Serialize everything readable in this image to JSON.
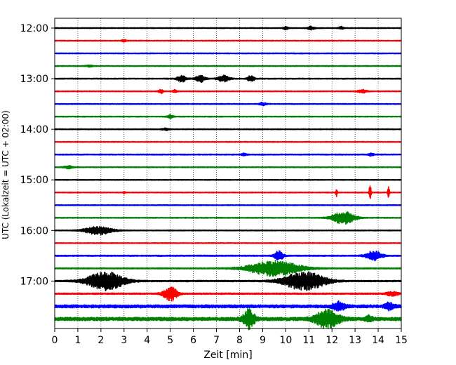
{
  "chart_data": {
    "type": "line",
    "chart_kind": "helicorder seismogram",
    "xlabel": "Zeit  [min]",
    "ylabel": "UTC (Lokalzeit = UTC + 02:00)",
    "xlim": [
      0,
      15
    ],
    "xticks": [
      0,
      1,
      2,
      3,
      4,
      5,
      6,
      7,
      8,
      9,
      10,
      11,
      12,
      13,
      14,
      15
    ],
    "x_grid": "dotted vertical lines at each minute",
    "y_time_ticks": [
      "12:00",
      "13:00",
      "14:00",
      "15:00",
      "16:00",
      "17:00"
    ],
    "rows_per_hour": 4,
    "trace_minutes": 15,
    "color_cycle": [
      "#000000",
      "#ff0000",
      "#0000ff",
      "#008000"
    ],
    "traces": [
      {
        "start": "12:00",
        "noise": 0.6,
        "events": [
          {
            "t": 10.0,
            "amp": 2.2,
            "dur": 0.2
          },
          {
            "t": 11.1,
            "amp": 2.4,
            "dur": 0.3
          },
          {
            "t": 12.4,
            "amp": 2.2,
            "dur": 0.2
          }
        ]
      },
      {
        "start": "12:15",
        "noise": 0.6,
        "events": [
          {
            "t": 3.0,
            "amp": 1.5,
            "dur": 0.2
          }
        ]
      },
      {
        "start": "12:30",
        "noise": 0.6,
        "events": []
      },
      {
        "start": "12:45",
        "noise": 0.6,
        "events": [
          {
            "t": 1.5,
            "amp": 1.2,
            "dur": 0.3
          }
        ]
      },
      {
        "start": "13:00",
        "noise": 0.7,
        "events": [
          {
            "t": 5.5,
            "amp": 4.5,
            "dur": 0.4
          },
          {
            "t": 6.3,
            "amp": 5.0,
            "dur": 0.4
          },
          {
            "t": 7.3,
            "amp": 4.5,
            "dur": 0.5
          },
          {
            "t": 8.5,
            "amp": 4.5,
            "dur": 0.3
          }
        ]
      },
      {
        "start": "13:15",
        "noise": 0.6,
        "events": [
          {
            "t": 4.6,
            "amp": 3.0,
            "dur": 0.2
          },
          {
            "t": 5.2,
            "amp": 2.0,
            "dur": 0.2
          },
          {
            "t": 13.3,
            "amp": 2.5,
            "dur": 0.4
          }
        ]
      },
      {
        "start": "13:30",
        "noise": 0.6,
        "events": [
          {
            "t": 9.0,
            "amp": 2.0,
            "dur": 0.3
          }
        ]
      },
      {
        "start": "13:45",
        "noise": 0.6,
        "events": [
          {
            "t": 5.0,
            "amp": 2.2,
            "dur": 0.3
          }
        ]
      },
      {
        "start": "14:00",
        "noise": 0.6,
        "events": [
          {
            "t": 4.8,
            "amp": 1.5,
            "dur": 0.3
          }
        ]
      },
      {
        "start": "14:15",
        "noise": 0.6,
        "events": []
      },
      {
        "start": "14:30",
        "noise": 0.7,
        "events": [
          {
            "t": 8.2,
            "amp": 1.8,
            "dur": 0.2
          },
          {
            "t": 13.7,
            "amp": 2.2,
            "dur": 0.2
          }
        ]
      },
      {
        "start": "14:45",
        "noise": 0.6,
        "events": [
          {
            "t": 0.6,
            "amp": 2.0,
            "dur": 0.4
          }
        ]
      },
      {
        "start": "15:00",
        "noise": 0.6,
        "events": []
      },
      {
        "start": "15:15",
        "noise": 0.6,
        "events": [
          {
            "t": 3.0,
            "amp": 1.5,
            "dur": 0.1
          },
          {
            "t": 12.2,
            "amp": 6.0,
            "dur": 0.08
          },
          {
            "t": 13.65,
            "amp": 13.0,
            "dur": 0.08
          },
          {
            "t": 14.45,
            "amp": 8.0,
            "dur": 0.08
          }
        ]
      },
      {
        "start": "15:30",
        "noise": 0.6,
        "events": []
      },
      {
        "start": "15:45",
        "noise": 0.6,
        "events": [
          {
            "t": 12.5,
            "amp": 9.0,
            "dur": 1.0
          }
        ]
      },
      {
        "start": "16:00",
        "noise": 0.6,
        "events": [
          {
            "t": 1.9,
            "amp": 6.0,
            "dur": 1.2
          }
        ]
      },
      {
        "start": "16:15",
        "noise": 0.6,
        "events": []
      },
      {
        "start": "16:30",
        "noise": 0.8,
        "events": [
          {
            "t": 9.7,
            "amp": 6.5,
            "dur": 0.4
          },
          {
            "t": 13.8,
            "amp": 7.0,
            "dur": 0.7
          }
        ]
      },
      {
        "start": "16:45",
        "noise": 0.8,
        "events": [
          {
            "t": 9.5,
            "amp": 11.0,
            "dur": 2.2
          }
        ]
      },
      {
        "start": "17:00",
        "noise": 1.0,
        "events": [
          {
            "t": 2.2,
            "amp": 13.0,
            "dur": 1.6
          },
          {
            "t": 10.8,
            "amp": 13.0,
            "dur": 1.8
          }
        ]
      },
      {
        "start": "17:15",
        "noise": 1.0,
        "events": [
          {
            "t": 5.0,
            "amp": 10.0,
            "dur": 0.6
          },
          {
            "t": 14.6,
            "amp": 3.0,
            "dur": 0.5
          }
        ]
      },
      {
        "start": "17:30",
        "noise": 2.2,
        "events": [
          {
            "t": 12.3,
            "amp": 6.0,
            "dur": 0.5
          },
          {
            "t": 14.5,
            "amp": 5.0,
            "dur": 0.4
          }
        ]
      },
      {
        "start": "17:45",
        "noise": 2.4,
        "events": [
          {
            "t": 8.4,
            "amp": 13.0,
            "dur": 0.5
          },
          {
            "t": 11.8,
            "amp": 13.0,
            "dur": 1.0
          },
          {
            "t": 13.6,
            "amp": 4.0,
            "dur": 0.3
          }
        ]
      }
    ]
  }
}
